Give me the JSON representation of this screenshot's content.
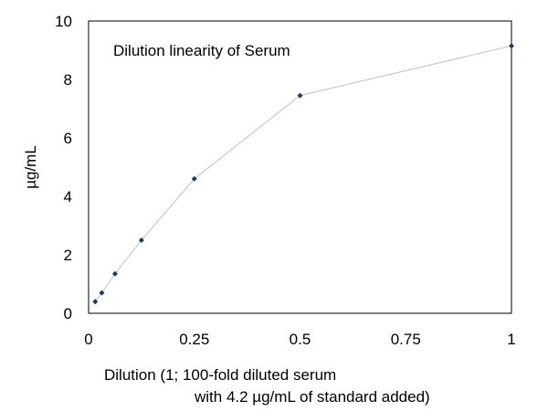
{
  "chart_data": {
    "type": "line",
    "title": "Dilution linearity of Serum",
    "xlabel_line1": "Dilution (1; 100-fold diluted serum",
    "xlabel_line2": "with 4.2 µg/mL of standard added)",
    "ylabel": "µg/mL",
    "xlim": [
      0,
      1
    ],
    "ylim": [
      0,
      10
    ],
    "x_ticks": [
      0,
      0.25,
      0.5,
      0.75,
      1
    ],
    "x_tick_labels": [
      "0",
      "0.25",
      "0.5",
      "0.75",
      "1"
    ],
    "y_ticks": [
      0,
      2,
      4,
      6,
      8,
      10
    ],
    "y_tick_labels": [
      "0",
      "2",
      "4",
      "6",
      "8",
      "10"
    ],
    "grid": false,
    "legend": "none",
    "series": [
      {
        "x": [
          0.015625,
          0.03125,
          0.0625,
          0.125,
          0.25,
          0.5,
          1
        ],
        "y": [
          0.4,
          0.7,
          1.35,
          2.5,
          4.6,
          7.45,
          9.15
        ],
        "marker_color": "#1f3864",
        "line_color": "#c0c0c0"
      }
    ]
  }
}
